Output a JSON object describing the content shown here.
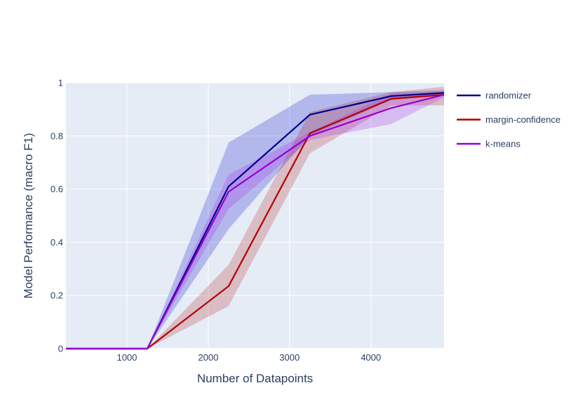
{
  "chart_data": {
    "type": "line",
    "xlabel": "Number of Datapoints",
    "ylabel": "Model Performance (macro F1)",
    "xlim": [
      250,
      4900
    ],
    "ylim": [
      0,
      1
    ],
    "x_ticks": [
      1000,
      2000,
      3000,
      4000
    ],
    "y_ticks": [
      0,
      0.2,
      0.4,
      0.6,
      0.8,
      1
    ],
    "x_tick_labels": [
      "1000",
      "2000",
      "3000",
      "4000"
    ],
    "y_tick_labels": [
      "0",
      "0.2",
      "0.4",
      "0.6",
      "0.8",
      "1"
    ],
    "grid": true,
    "legend_position": "top-right outside",
    "plot_bgcolor": "#e5ecf6",
    "x": [
      250,
      1250,
      2250,
      3250,
      4250,
      4900
    ],
    "series": [
      {
        "name": "randomizer",
        "color": "#00008b",
        "band_color": "rgba(0,0,200,0.22)",
        "values": [
          0,
          0,
          0.61,
          0.88,
          0.95,
          0.962
        ],
        "upper": [
          0,
          0,
          0.775,
          0.955,
          0.965,
          0.972
        ],
        "lower": [
          0,
          0,
          0.45,
          0.8,
          0.935,
          0.952
        ]
      },
      {
        "name": "margin-confidence",
        "color": "#b00000",
        "band_color": "rgba(176,0,0,0.2)",
        "values": [
          0,
          0,
          0.235,
          0.81,
          0.94,
          0.955
        ],
        "upper": [
          0,
          0,
          0.315,
          0.89,
          0.965,
          0.985
        ],
        "lower": [
          0,
          0,
          0.16,
          0.735,
          0.915,
          0.915
        ]
      },
      {
        "name": "k-means",
        "color": "#9400d3",
        "band_color": "rgba(170,40,230,0.25)",
        "values": [
          0,
          0,
          0.59,
          0.8,
          0.905,
          0.955
        ],
        "upper": [
          0,
          0,
          0.655,
          0.815,
          0.96,
          0.965
        ],
        "lower": [
          0,
          0,
          0.525,
          0.785,
          0.845,
          0.945
        ]
      }
    ]
  }
}
